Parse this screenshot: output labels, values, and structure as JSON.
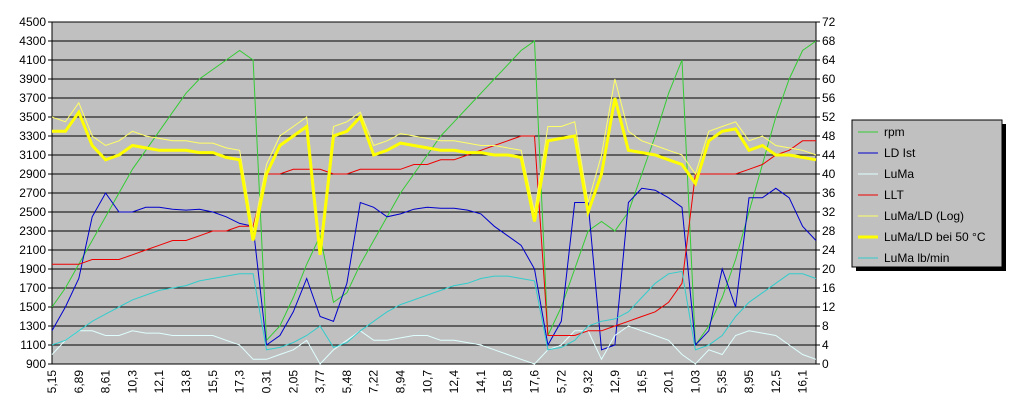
{
  "chart_data": {
    "type": "line",
    "categories": [
      "5,15",
      null,
      "6,89",
      null,
      "8,61",
      null,
      "10,3",
      null,
      "12,1",
      null,
      "13,8",
      null,
      "15,5",
      null,
      "17,3",
      null,
      "0,31",
      null,
      "2,05",
      null,
      "3,77",
      null,
      "5,48",
      null,
      "7,22",
      null,
      "8,94",
      null,
      "10,7",
      null,
      "12,4",
      null,
      "14,1",
      null,
      "15,8",
      null,
      "17,6",
      null,
      "5,72",
      null,
      "9,32",
      null,
      "12,9",
      null,
      "16,5",
      null,
      "20,1",
      null,
      "1,03",
      null,
      "5,35",
      null,
      "8,95",
      null,
      "12,5",
      null,
      "16,1",
      null
    ],
    "ylim": [
      900,
      4500
    ],
    "yticks": [
      900,
      1100,
      1300,
      1500,
      1700,
      1900,
      2100,
      2300,
      2500,
      2700,
      2900,
      3100,
      3300,
      3500,
      3700,
      3900,
      4100,
      4300,
      4500
    ],
    "y2lim": [
      0,
      72
    ],
    "y2ticks": [
      0,
      4,
      8,
      12,
      16,
      20,
      24,
      28,
      32,
      36,
      40,
      44,
      48,
      52,
      56,
      60,
      64,
      68,
      72
    ],
    "grid": true,
    "legend": "right",
    "series": [
      {
        "name": "rpm",
        "color": "#33cc33",
        "width": 1,
        "values": [
          1500,
          1700,
          1950,
          2200,
          2450,
          2700,
          2950,
          3150,
          3350,
          3550,
          3750,
          3900,
          4000,
          4100,
          4200,
          4100,
          1150,
          1300,
          1600,
          1950,
          2250,
          1550,
          1650,
          1950,
          2200,
          2450,
          2700,
          2900,
          3100,
          3300,
          3450,
          3600,
          3750,
          3900,
          4050,
          4200,
          4300,
          1200,
          1500,
          1900,
          2300,
          2400,
          2300,
          2500,
          2900,
          3300,
          3750,
          4100,
          1100,
          1300,
          1600,
          2000,
          2500,
          3000,
          3500,
          3900,
          4200,
          4300
        ]
      },
      {
        "name": "LD Ist",
        "color": "#0000cc",
        "width": 1,
        "values": [
          1250,
          1500,
          1800,
          2450,
          2700,
          2500,
          2500,
          2550,
          2550,
          2530,
          2520,
          2530,
          2500,
          2450,
          2380,
          2350,
          1100,
          1200,
          1450,
          1800,
          1400,
          1350,
          1750,
          2600,
          2550,
          2450,
          2480,
          2530,
          2550,
          2540,
          2540,
          2520,
          2480,
          2350,
          2250,
          2150,
          1900,
          1100,
          1350,
          2600,
          2600,
          1050,
          1100,
          2600,
          2750,
          2730,
          2650,
          2550,
          1100,
          1250,
          1900,
          1500,
          2650,
          2650,
          2750,
          2650,
          2350,
          2200
        ]
      },
      {
        "name": "LuMa",
        "color": "#e0ffff",
        "width": 1,
        "axis": "y2",
        "values": [
          2,
          5,
          7,
          7,
          6,
          6,
          7,
          6.5,
          6.5,
          6,
          6,
          6,
          6,
          5,
          4,
          1,
          1,
          2,
          3,
          5,
          0,
          3,
          5,
          7,
          5,
          5,
          5.5,
          6,
          6,
          5,
          5,
          4.5,
          4,
          3,
          2,
          1,
          0,
          3,
          4,
          7,
          7,
          1,
          6,
          8,
          7,
          6,
          5,
          2,
          0,
          3,
          2,
          6,
          7,
          6.5,
          6,
          4,
          2,
          1
        ]
      },
      {
        "name": "LLT",
        "color": "#ee0000",
        "width": 1,
        "values": [
          1950,
          1950,
          1950,
          2000,
          2000,
          2000,
          2050,
          2100,
          2150,
          2200,
          2200,
          2250,
          2300,
          2300,
          2350,
          2350,
          2900,
          2900,
          2950,
          2950,
          2950,
          2900,
          2900,
          2950,
          2950,
          2950,
          2950,
          3000,
          3000,
          3050,
          3050,
          3100,
          3150,
          3200,
          3250,
          3300,
          3300,
          1200,
          1200,
          1200,
          1250,
          1250,
          1300,
          1350,
          1400,
          1450,
          1550,
          1750,
          2900,
          2900,
          2900,
          2900,
          2950,
          3000,
          3100,
          3150,
          3250,
          3250
        ]
      },
      {
        "name": "LuMa/LD (Log)",
        "color": "#ffff66",
        "width": 1,
        "axis": "y2",
        "values": [
          52,
          51,
          55,
          48,
          46,
          47,
          49,
          48,
          47.5,
          47,
          47,
          46.5,
          46.5,
          45.5,
          45,
          28,
          42,
          48,
          50,
          52,
          25,
          50,
          51,
          53,
          46,
          47,
          48.5,
          48,
          47.5,
          47,
          47,
          46.5,
          46,
          46,
          45.5,
          45,
          32,
          50,
          50,
          51,
          34,
          44,
          60,
          49,
          47,
          46,
          45,
          44,
          40,
          49,
          50,
          51,
          47,
          48,
          46,
          45.5,
          45,
          44
        ]
      },
      {
        "name": "LuMa/LD bei 50 °C",
        "color": "#ffff00",
        "width": 3,
        "axis": "y2",
        "values": [
          49,
          49,
          53,
          46,
          43,
          44,
          46,
          45.5,
          45,
          45,
          45,
          44.5,
          44.5,
          43.5,
          43,
          26,
          40,
          46,
          48,
          50,
          23,
          48,
          49,
          52,
          44,
          45,
          46.5,
          46,
          45.5,
          45,
          45,
          44.5,
          44.5,
          44,
          44,
          43.5,
          30,
          47,
          47.5,
          48,
          32,
          40,
          56,
          45,
          44.5,
          44,
          43,
          42,
          38,
          47,
          49,
          49.5,
          45,
          46,
          44,
          44,
          43.5,
          43
        ]
      },
      {
        "name": "LuMa lb/min",
        "color": "#33cccc",
        "width": 1,
        "axis": "y2",
        "values": [
          4,
          5,
          7,
          9,
          10.5,
          12,
          13.5,
          14.5,
          15.5,
          16,
          16.5,
          17.5,
          18,
          18.5,
          19,
          19,
          3,
          3.5,
          4.5,
          6,
          8,
          3.5,
          4.5,
          7,
          9,
          11,
          12.5,
          13.5,
          14.5,
          15.5,
          16.5,
          17,
          18,
          18.5,
          18.5,
          18,
          17.5,
          3,
          3.5,
          5,
          8,
          9,
          9.5,
          11,
          14,
          17,
          19,
          19.5,
          3,
          4,
          6,
          10,
          13,
          15,
          17,
          19,
          19,
          18
        ]
      }
    ]
  }
}
